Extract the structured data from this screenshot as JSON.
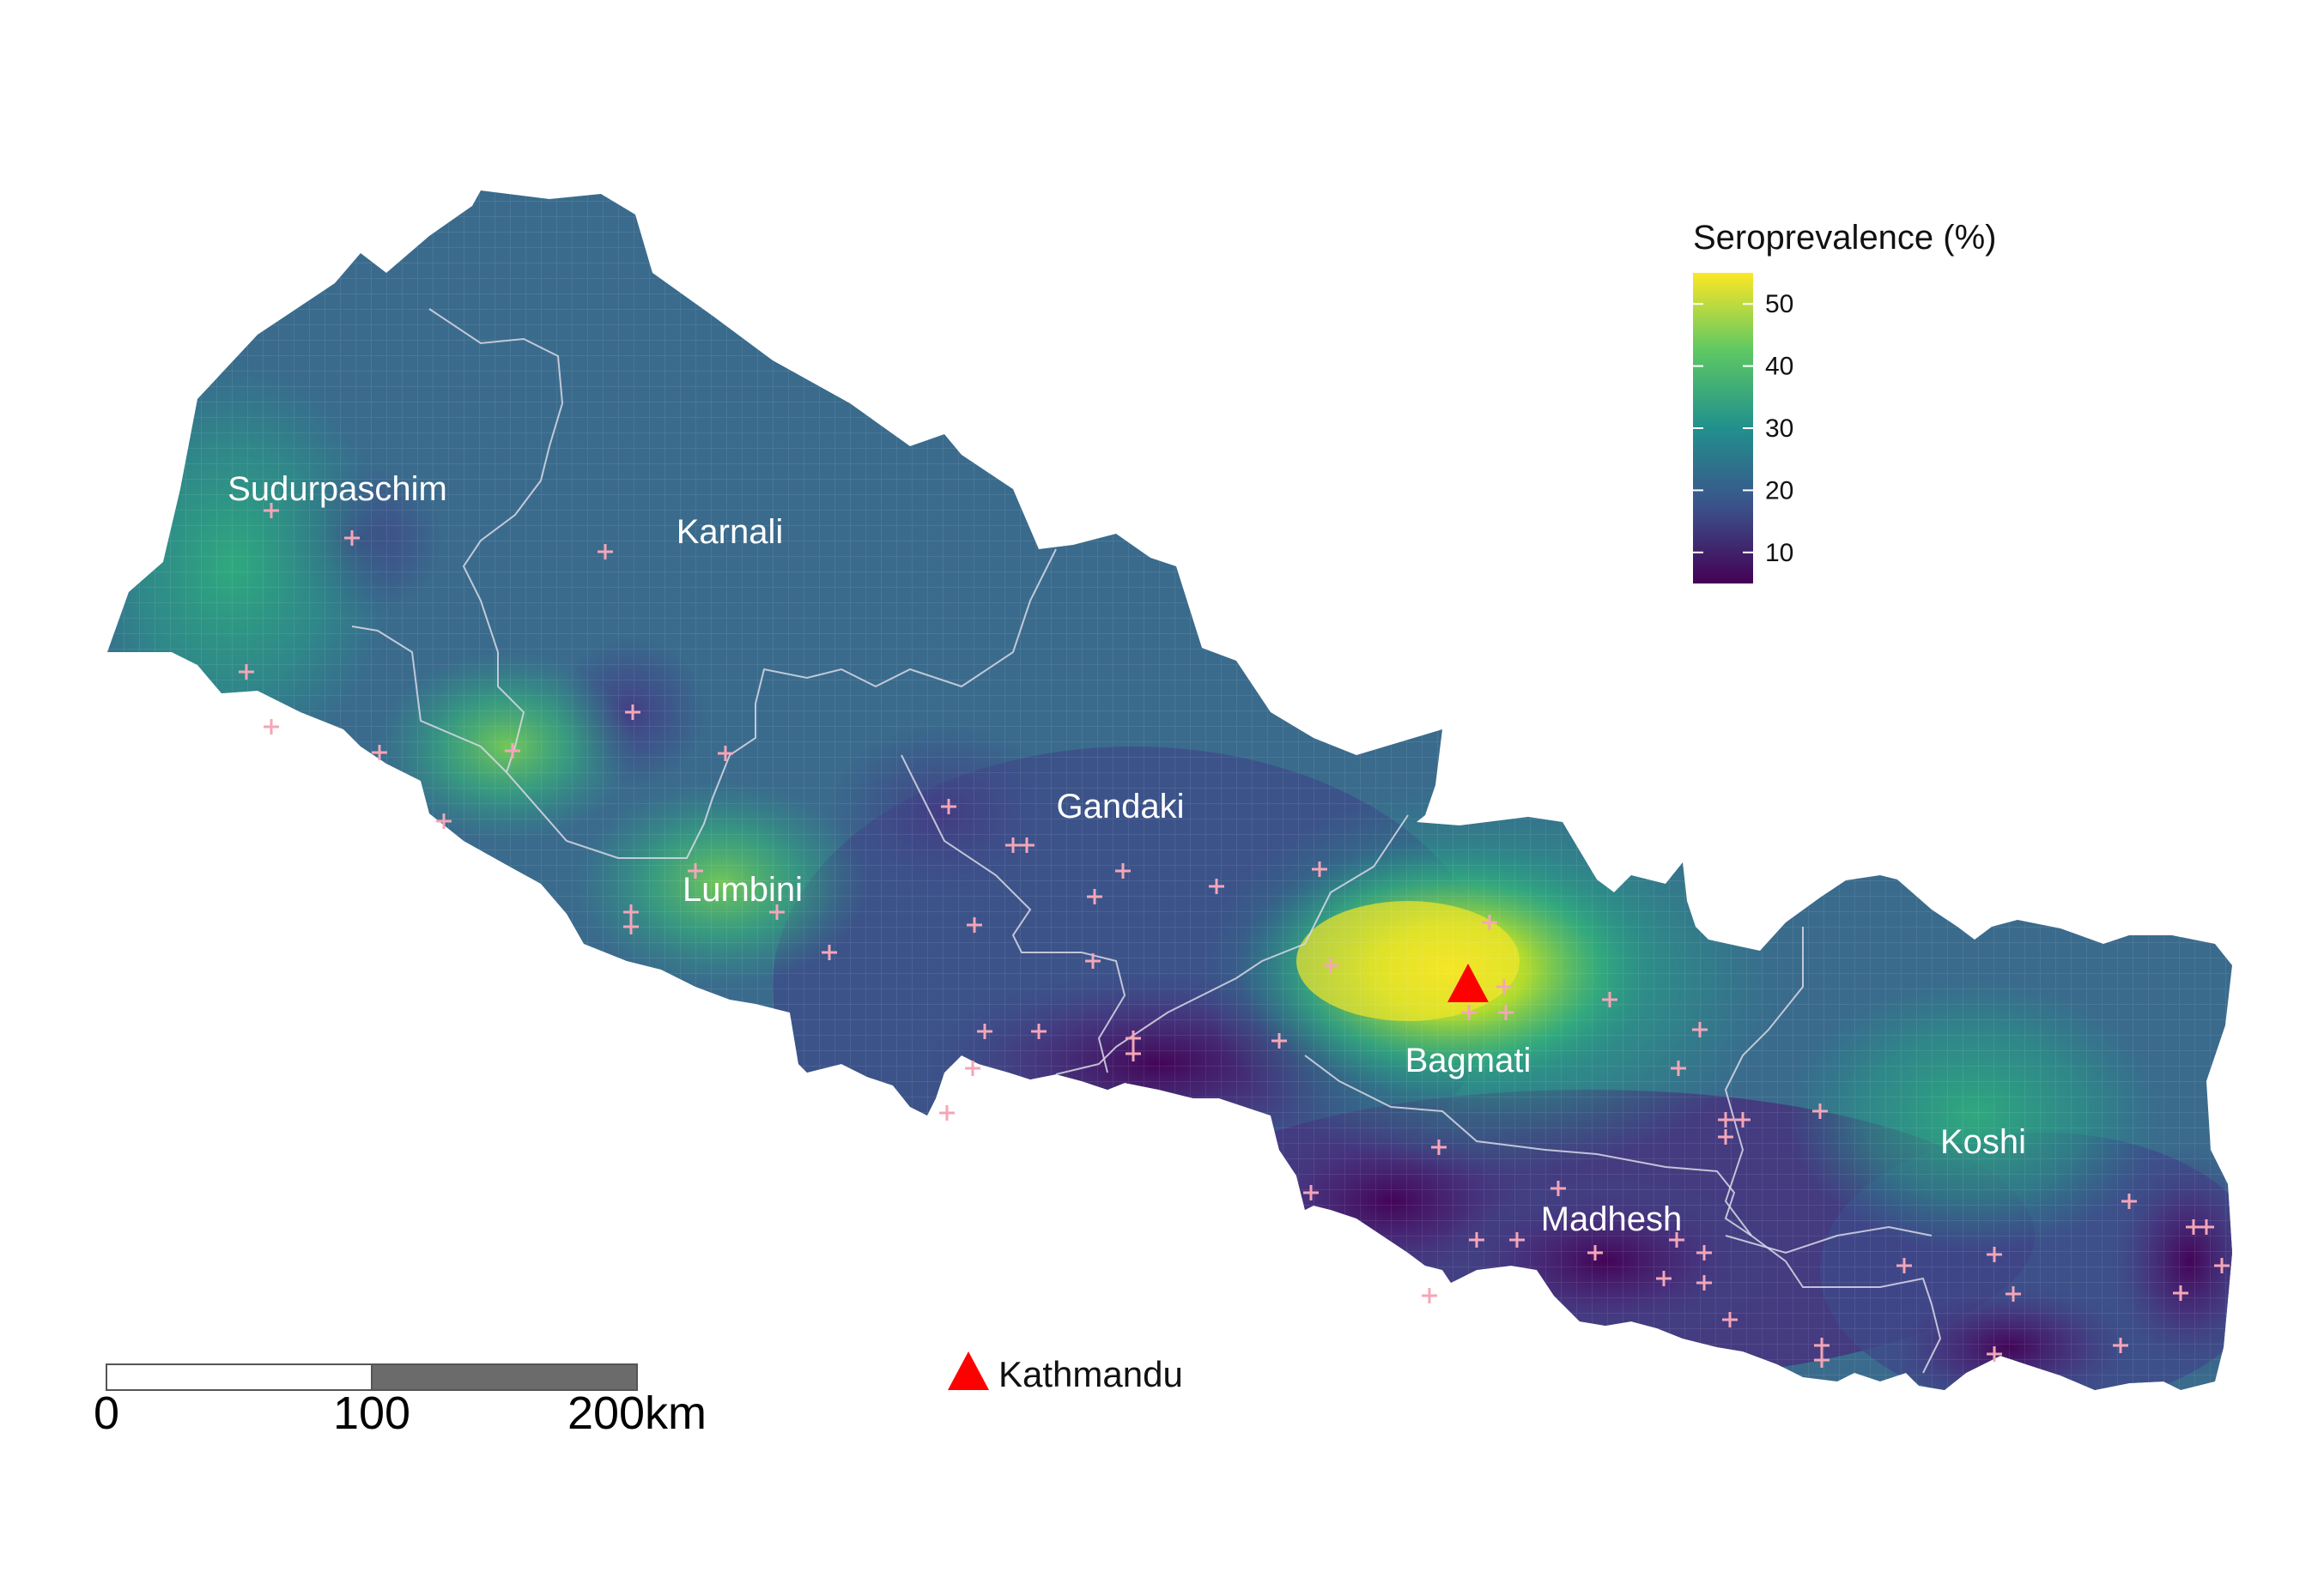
{
  "map": {
    "legend": {
      "title": "Seroprevalence (%)",
      "ticks": [
        "10",
        "20",
        "30",
        "40",
        "50"
      ],
      "tick_values": [
        10,
        20,
        30,
        40,
        50
      ],
      "range": [
        5,
        55
      ],
      "colors": [
        "#440154",
        "#3b528b",
        "#21908d",
        "#5dc863",
        "#fde725"
      ]
    },
    "regions": [
      "Sudurpaschim",
      "Karnali",
      "Gandaki",
      "Lumbini",
      "Bagmati",
      "Madhesh",
      "Koshi"
    ],
    "capital": {
      "label": "Kathmandu",
      "color": "#ff0000"
    },
    "scale_bar": {
      "labels": [
        "0",
        "100",
        "200km"
      ]
    },
    "colors": {
      "sample_marker": "#f4a6b8",
      "boundary": "#d9d9e6"
    }
  }
}
